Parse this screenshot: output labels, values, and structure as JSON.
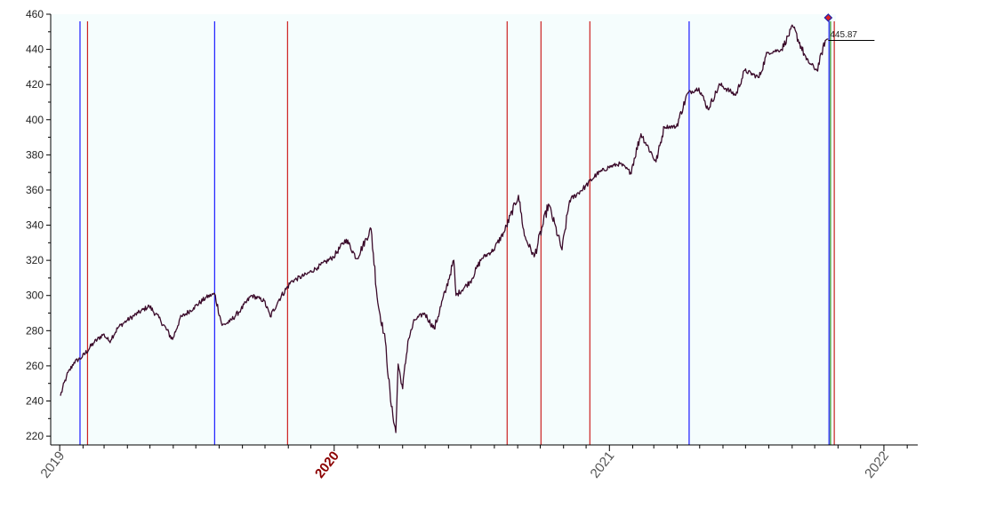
{
  "chart_data": {
    "type": "line",
    "title": "",
    "xlabel": "",
    "ylabel": "",
    "ylim": [
      215,
      460
    ],
    "xlim": [
      "2018-12-20",
      "2022-02-15"
    ],
    "y_ticks": [
      "220",
      "240",
      "260",
      "280",
      "300",
      "320",
      "340",
      "360",
      "380",
      "400",
      "420",
      "440",
      "460"
    ],
    "year_labels": [
      {
        "date": "2019-01-01",
        "text": "2019",
        "highlight": false
      },
      {
        "date": "2020-01-01",
        "text": "2020",
        "highlight": true
      },
      {
        "date": "2021-01-01",
        "text": "2021",
        "highlight": false
      },
      {
        "date": "2022-01-01",
        "text": "2022",
        "highlight": false
      }
    ],
    "last_value_label": "445.87",
    "grid": false,
    "plot_background": "#f5fdfd",
    "line_color": "#3a0a2a",
    "series": [
      {
        "points": [
          [
            "2019-01-02",
            243
          ],
          [
            "2019-01-10",
            254
          ],
          [
            "2019-01-20",
            262
          ],
          [
            "2019-01-31",
            265
          ],
          [
            "2019-02-15",
            273
          ],
          [
            "2019-02-28",
            278
          ],
          [
            "2019-03-08",
            274
          ],
          [
            "2019-03-20",
            282
          ],
          [
            "2019-04-01",
            286
          ],
          [
            "2019-04-15",
            290
          ],
          [
            "2019-04-30",
            294
          ],
          [
            "2019-05-15",
            286
          ],
          [
            "2019-05-31",
            275
          ],
          [
            "2019-06-10",
            287
          ],
          [
            "2019-06-28",
            293
          ],
          [
            "2019-07-15",
            299
          ],
          [
            "2019-07-26",
            301
          ],
          [
            "2019-08-05",
            283
          ],
          [
            "2019-08-15",
            285
          ],
          [
            "2019-08-30",
            292
          ],
          [
            "2019-09-13",
            300
          ],
          [
            "2019-09-30",
            297
          ],
          [
            "2019-10-08",
            288
          ],
          [
            "2019-10-20",
            298
          ],
          [
            "2019-11-05",
            308
          ],
          [
            "2019-11-25",
            312
          ],
          [
            "2019-12-10",
            316
          ],
          [
            "2019-12-31",
            322
          ],
          [
            "2020-01-17",
            332
          ],
          [
            "2020-01-31",
            321
          ],
          [
            "2020-02-19",
            338
          ],
          [
            "2020-02-28",
            296
          ],
          [
            "2020-03-09",
            274
          ],
          [
            "2020-03-16",
            240
          ],
          [
            "2020-03-23",
            222
          ],
          [
            "2020-03-26",
            261
          ],
          [
            "2020-04-01",
            247
          ],
          [
            "2020-04-08",
            274
          ],
          [
            "2020-04-17",
            286
          ],
          [
            "2020-04-30",
            290
          ],
          [
            "2020-05-13",
            281
          ],
          [
            "2020-05-29",
            304
          ],
          [
            "2020-06-08",
            320
          ],
          [
            "2020-06-11",
            300
          ],
          [
            "2020-06-30",
            308
          ],
          [
            "2020-07-15",
            321
          ],
          [
            "2020-07-31",
            326
          ],
          [
            "2020-08-15",
            337
          ],
          [
            "2020-09-02",
            357
          ],
          [
            "2020-09-10",
            334
          ],
          [
            "2020-09-23",
            322
          ],
          [
            "2020-10-12",
            352
          ],
          [
            "2020-10-30",
            326
          ],
          [
            "2020-11-09",
            354
          ],
          [
            "2020-11-30",
            362
          ],
          [
            "2020-12-15",
            369
          ],
          [
            "2020-12-31",
            373
          ],
          [
            "2021-01-15",
            375
          ],
          [
            "2021-01-29",
            370
          ],
          [
            "2021-02-12",
            392
          ],
          [
            "2021-03-04",
            376
          ],
          [
            "2021-03-15",
            396
          ],
          [
            "2021-03-31",
            396
          ],
          [
            "2021-04-15",
            415
          ],
          [
            "2021-04-30",
            418
          ],
          [
            "2021-05-12",
            406
          ],
          [
            "2021-05-28",
            420
          ],
          [
            "2021-06-18",
            414
          ],
          [
            "2021-06-30",
            428
          ],
          [
            "2021-07-19",
            424
          ],
          [
            "2021-07-30",
            438
          ],
          [
            "2021-08-18",
            440
          ],
          [
            "2021-09-02",
            453
          ],
          [
            "2021-09-20",
            434
          ],
          [
            "2021-10-04",
            428
          ],
          [
            "2021-10-15",
            445
          ],
          [
            "2021-10-19",
            445.87
          ]
        ]
      }
    ],
    "vertical_markers": [
      {
        "date": "2019-01-28",
        "color": "#1a1aff"
      },
      {
        "date": "2019-02-07",
        "color": "#cc2222"
      },
      {
        "date": "2019-07-26",
        "color": "#1a1aff"
      },
      {
        "date": "2019-10-31",
        "color": "#cc2222"
      },
      {
        "date": "2020-08-18",
        "color": "#cc2222"
      },
      {
        "date": "2020-10-02",
        "color": "#cc2222"
      },
      {
        "date": "2020-12-06",
        "color": "#cc2222"
      },
      {
        "date": "2021-04-17",
        "color": "#1a1aff"
      },
      {
        "date": "2021-10-20",
        "color": "#1a1aff"
      },
      {
        "date": "2021-10-22",
        "color": "#228822"
      },
      {
        "date": "2021-10-27",
        "color": "#cc2222"
      }
    ]
  }
}
